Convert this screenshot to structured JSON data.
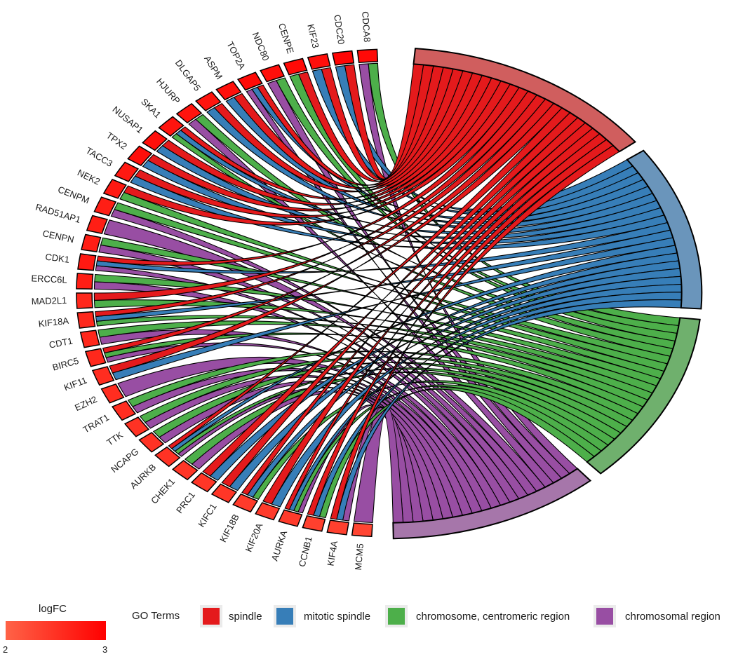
{
  "chart_data": {
    "type": "chord",
    "title": "",
    "genes": [
      "CDCA8",
      "CDC20",
      "KIF23",
      "CENPE",
      "NDC80",
      "TOP2A",
      "ASPM",
      "DLGAP5",
      "HJURP",
      "SKA1",
      "NUSAP1",
      "TPX2",
      "TACC3",
      "NEK2",
      "CENPM",
      "RAD51AP1",
      "CENPN",
      "CDK1",
      "ERCC6L",
      "MAD2L1",
      "KIF18A",
      "CDT1",
      "BIRC5",
      "KIF11",
      "EZH2",
      "TRAT1",
      "TTK",
      "NCAPG",
      "AURKB",
      "CHEK1",
      "PRC1",
      "KIFC1",
      "KIF18B",
      "KIF20A",
      "AURKA",
      "CCNB1",
      "KIF4A",
      "MCM5"
    ],
    "logFC": [
      2.9,
      2.95,
      2.85,
      2.9,
      2.85,
      2.9,
      2.85,
      2.8,
      2.8,
      2.8,
      2.85,
      2.85,
      2.75,
      2.75,
      2.7,
      2.7,
      2.7,
      2.75,
      2.7,
      2.6,
      2.6,
      2.6,
      2.6,
      2.55,
      2.55,
      2.55,
      2.5,
      2.5,
      2.5,
      2.45,
      2.45,
      2.45,
      2.4,
      2.4,
      2.4,
      2.35,
      2.35,
      2.3
    ],
    "terms": [
      "spindle",
      "mitotic spindle",
      "chromosome, centromeric region",
      "chromosomal region"
    ],
    "term_colors": [
      "#E41A1C",
      "#377EB8",
      "#4DAF4A",
      "#984EA3"
    ],
    "term_arc_colors": [
      "#D05E5E",
      "#6A95BB",
      "#6FB06D",
      "#A676AA"
    ],
    "memberships": {
      "CDCA8": [
        2,
        3
      ],
      "CDC20": [
        0,
        1
      ],
      "KIF23": [
        0,
        1
      ],
      "CENPE": [
        0,
        2
      ],
      "NDC80": [
        2,
        3
      ],
      "TOP2A": [
        0,
        1,
        3
      ],
      "ASPM": [
        0,
        1
      ],
      "DLGAP5": [
        0,
        1
      ],
      "HJURP": [
        2,
        3
      ],
      "SKA1": [
        0,
        1,
        2
      ],
      "NUSAP1": [
        0,
        1
      ],
      "TPX2": [
        0,
        1
      ],
      "TACC3": [
        0,
        1
      ],
      "NEK2": [
        0,
        2
      ],
      "CENPM": [
        2,
        3
      ],
      "RAD51AP1": [
        3
      ],
      "CENPN": [
        2,
        3
      ],
      "CDK1": [
        0,
        1,
        3
      ],
      "ERCC6L": [
        2,
        3
      ],
      "MAD2L1": [
        0,
        2
      ],
      "KIF18A": [
        0,
        1,
        2
      ],
      "CDT1": [
        2,
        3
      ],
      "BIRC5": [
        0,
        2,
        3
      ],
      "KIF11": [
        0,
        1
      ],
      "EZH2": [
        3
      ],
      "TRAT1": [
        2,
        3
      ],
      "TTK": [
        2,
        3
      ],
      "NCAPG": [
        2,
        3
      ],
      "AURKB": [
        0,
        1,
        2,
        3
      ],
      "CHEK1": [
        2,
        3
      ],
      "PRC1": [
        0,
        1
      ],
      "KIFC1": [
        0,
        1
      ],
      "KIF18B": [
        0,
        1,
        2
      ],
      "KIF20A": [
        0,
        1
      ],
      "AURKA": [
        0,
        1,
        2,
        3
      ],
      "CCNB1": [
        0,
        1,
        2
      ],
      "KIF4A": [
        0,
        1,
        3
      ],
      "MCM5": [
        3
      ]
    }
  },
  "legend": {
    "logfc_title": "logFC",
    "logfc_min": "2",
    "logfc_max": "3",
    "logfc_color_low": "#FF6347",
    "logfc_color_high": "#FF0000",
    "go_title": "GO Terms",
    "items": [
      {
        "label": "spindle",
        "color": "#E41A1C"
      },
      {
        "label": "mitotic spindle",
        "color": "#377EB8"
      },
      {
        "label": "chromosome, centromeric region",
        "color": "#4DAF4A"
      },
      {
        "label": "chromosomal region",
        "color": "#984EA3"
      }
    ]
  }
}
